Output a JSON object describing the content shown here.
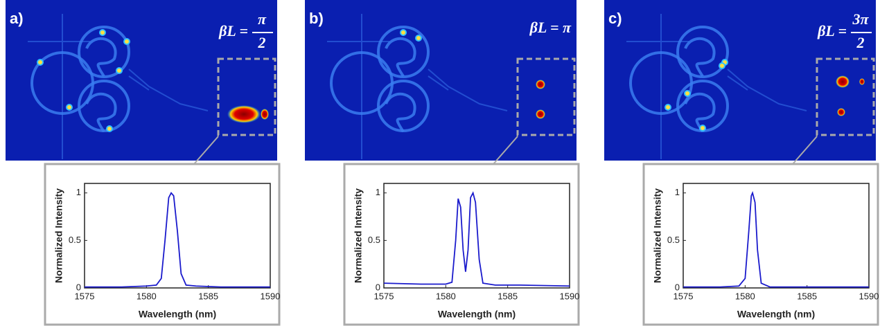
{
  "chart_data": [
    {
      "type": "line",
      "panel": "a)",
      "annotation": {
        "lhs": "βL =",
        "numerator": "π",
        "denominator": "2"
      },
      "xlabel": "Wavelength (nm)",
      "ylabel": "Normalized Intensity",
      "color": "#1a1acc",
      "xlim": [
        1575,
        1590
      ],
      "xticks": [
        1575,
        1580,
        1585,
        1590
      ],
      "ylim": [
        0,
        1.1
      ],
      "yticks": [
        0,
        0.5,
        1
      ],
      "x": [
        1575,
        1578,
        1580,
        1580.8,
        1581.2,
        1581.5,
        1581.8,
        1582,
        1582.2,
        1582.5,
        1582.8,
        1583.2,
        1584,
        1586,
        1588,
        1590
      ],
      "values": [
        0.01,
        0.01,
        0.02,
        0.03,
        0.1,
        0.5,
        0.95,
        1,
        0.97,
        0.6,
        0.15,
        0.03,
        0.02,
        0.01,
        0.01,
        0.01
      ]
    },
    {
      "type": "line",
      "panel": "b)",
      "annotation": {
        "lhs": "βL = π"
      },
      "xlabel": "Wavelength (nm)",
      "ylabel": "Normalized Intensity",
      "color": "#1a1acc",
      "xlim": [
        1575,
        1590
      ],
      "xticks": [
        1575,
        1580,
        1585,
        1590
      ],
      "ylim": [
        0,
        1.1
      ],
      "yticks": [
        0,
        0.5,
        1
      ],
      "x": [
        1575,
        1578,
        1580,
        1580.5,
        1580.8,
        1581,
        1581.2,
        1581.4,
        1581.6,
        1581.8,
        1582,
        1582.2,
        1582.4,
        1582.7,
        1583,
        1584,
        1586,
        1590
      ],
      "values": [
        0.05,
        0.04,
        0.04,
        0.06,
        0.5,
        0.94,
        0.85,
        0.4,
        0.17,
        0.4,
        0.95,
        1,
        0.9,
        0.3,
        0.05,
        0.03,
        0.03,
        0.02
      ]
    },
    {
      "type": "line",
      "panel": "c)",
      "annotation": {
        "lhs": "βL =",
        "numerator": "3π",
        "denominator": "2"
      },
      "xlabel": "Wavelength (nm)",
      "ylabel": "Normalized Intensity",
      "color": "#1a1acc",
      "xlim": [
        1575,
        1590
      ],
      "xticks": [
        1575,
        1580,
        1585,
        1590
      ],
      "ylim": [
        0,
        1.1
      ],
      "yticks": [
        0,
        0.5,
        1
      ],
      "x": [
        1575,
        1578,
        1579.5,
        1580,
        1580.3,
        1580.5,
        1580.6,
        1580.8,
        1581,
        1581.3,
        1582,
        1585,
        1590
      ],
      "values": [
        0.01,
        0.01,
        0.02,
        0.1,
        0.6,
        0.97,
        1,
        0.9,
        0.4,
        0.05,
        0.01,
        0.01,
        0.01
      ]
    }
  ]
}
